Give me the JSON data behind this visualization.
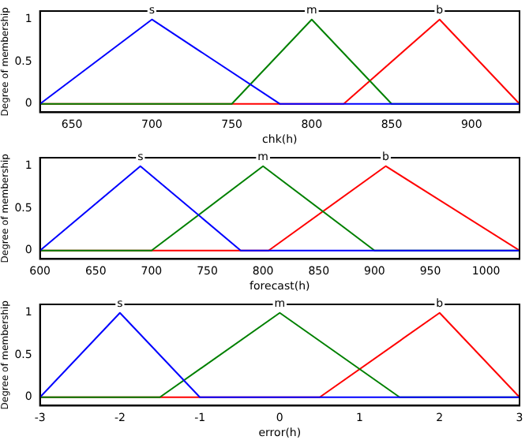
{
  "chart_data": [
    {
      "type": "line",
      "xlabel": "chk(h)",
      "ylabel": "Degree of membership",
      "xlim": [
        630,
        930
      ],
      "xticks": [
        650,
        700,
        750,
        800,
        850,
        900
      ],
      "ylim": [
        -0.1,
        1.1
      ],
      "yticks": [
        0,
        0.5,
        1
      ],
      "grid": false,
      "legend": false,
      "marker": "none",
      "line_style": "solid",
      "series": [
        {
          "color": "#0000ff",
          "x": [
            630,
            700,
            780,
            930
          ],
          "values": [
            0,
            1,
            0,
            0
          ]
        },
        {
          "color": "#008000",
          "x": [
            630,
            750,
            800,
            850,
            930
          ],
          "values": [
            0,
            0,
            1,
            0,
            0
          ]
        },
        {
          "color": "#ff0000",
          "x": [
            630,
            820,
            880,
            930
          ],
          "values": [
            0,
            0,
            1,
            0
          ]
        }
      ],
      "annotations": [
        {
          "text": "s",
          "x": 700,
          "y": 1
        },
        {
          "text": "m",
          "x": 800,
          "y": 1
        },
        {
          "text": "b",
          "x": 880,
          "y": 1
        }
      ]
    },
    {
      "type": "line",
      "xlabel": "forecast(h)",
      "ylabel": "Degree of membership",
      "xlim": [
        600,
        1030
      ],
      "xticks": [
        600,
        650,
        700,
        750,
        800,
        850,
        900,
        950,
        1000
      ],
      "ylim": [
        -0.1,
        1.1
      ],
      "yticks": [
        0,
        0.5,
        1
      ],
      "grid": false,
      "legend": false,
      "marker": "none",
      "line_style": "solid",
      "series": [
        {
          "color": "#0000ff",
          "x": [
            600,
            690,
            780,
            1030
          ],
          "values": [
            0,
            1,
            0,
            0
          ]
        },
        {
          "color": "#008000",
          "x": [
            600,
            700,
            800,
            900,
            1030
          ],
          "values": [
            0,
            0,
            1,
            0,
            0
          ]
        },
        {
          "color": "#ff0000",
          "x": [
            600,
            805,
            910,
            1030
          ],
          "values": [
            0,
            0,
            1,
            0
          ]
        }
      ],
      "annotations": [
        {
          "text": "s",
          "x": 690,
          "y": 1
        },
        {
          "text": "m",
          "x": 800,
          "y": 1
        },
        {
          "text": "b",
          "x": 910,
          "y": 1
        }
      ]
    },
    {
      "type": "line",
      "xlabel": "error(h)",
      "ylabel": "Degree of membership",
      "xlim": [
        -3,
        3
      ],
      "xticks": [
        -3,
        -2,
        -1,
        0,
        1,
        2,
        3
      ],
      "ylim": [
        -0.1,
        1.1
      ],
      "yticks": [
        0,
        0.5,
        1
      ],
      "grid": false,
      "legend": false,
      "marker": "none",
      "line_style": "solid",
      "series": [
        {
          "color": "#0000ff",
          "x": [
            -3,
            -2,
            -1,
            3
          ],
          "values": [
            0,
            1,
            0,
            0
          ]
        },
        {
          "color": "#008000",
          "x": [
            -3,
            -1.5,
            0,
            1.5,
            3
          ],
          "values": [
            0,
            0,
            1,
            0,
            0
          ]
        },
        {
          "color": "#ff0000",
          "x": [
            -3,
            0.5,
            2,
            3
          ],
          "values": [
            0,
            0,
            1,
            0
          ]
        }
      ],
      "annotations": [
        {
          "text": "s",
          "x": -2,
          "y": 1
        },
        {
          "text": "m",
          "x": 0,
          "y": 1
        },
        {
          "text": "b",
          "x": 2,
          "y": 1
        }
      ]
    }
  ]
}
